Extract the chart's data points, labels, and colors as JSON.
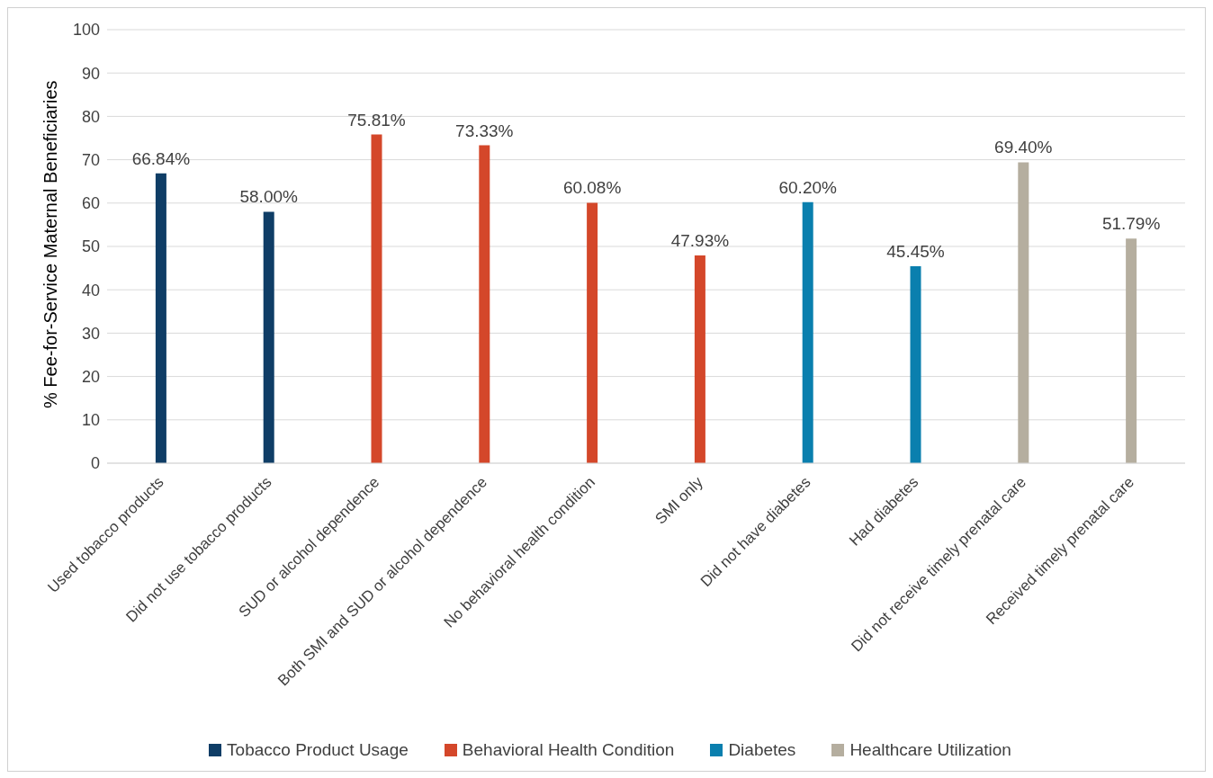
{
  "chart_data": {
    "type": "bar",
    "categories": [
      "Used tobacco products",
      "Did not use tobacco products",
      "SUD or alcohol dependence",
      "Both SMI and SUD or alcohol dependence",
      "No behavioral health condition",
      "SMI only",
      "Did not have diabetes",
      "Had diabetes",
      "Did not receive timely prenatal care",
      "Received timely prenatal care"
    ],
    "series": [
      {
        "name": "Tobacco Product Usage",
        "color": "#0f3d66",
        "values": [
          66.84,
          58.0,
          null,
          null,
          null,
          null,
          null,
          null,
          null,
          null
        ],
        "value_labels": [
          "66.84%",
          "58.00%",
          null,
          null,
          null,
          null,
          null,
          null,
          null,
          null
        ]
      },
      {
        "name": "Behavioral Health Condition",
        "color": "#d4472a",
        "values": [
          null,
          null,
          75.81,
          73.33,
          60.08,
          47.93,
          null,
          null,
          null,
          null
        ],
        "value_labels": [
          null,
          null,
          "75.81%",
          "73.33%",
          "60.08%",
          "47.93%",
          null,
          null,
          null,
          null
        ]
      },
      {
        "name": "Diabetes",
        "color": "#0a7fae",
        "values": [
          null,
          null,
          null,
          null,
          null,
          null,
          60.2,
          45.45,
          null,
          null
        ],
        "value_labels": [
          null,
          null,
          null,
          null,
          null,
          null,
          "60.20%",
          "45.45%",
          null,
          null
        ]
      },
      {
        "name": "Healthcare Utilization",
        "color": "#b5ae9f",
        "values": [
          null,
          null,
          null,
          null,
          null,
          null,
          null,
          null,
          69.4,
          51.79
        ],
        "value_labels": [
          null,
          null,
          null,
          null,
          null,
          null,
          null,
          null,
          "69.40%",
          "51.79%"
        ]
      }
    ],
    "ylabel": "% Fee-for-Service Maternal Beneficiaries",
    "ylim": [
      0,
      100
    ],
    "yticks": [
      0,
      10,
      20,
      30,
      40,
      50,
      60,
      70,
      80,
      90,
      100
    ],
    "grid": "y",
    "legend": "bottom"
  }
}
